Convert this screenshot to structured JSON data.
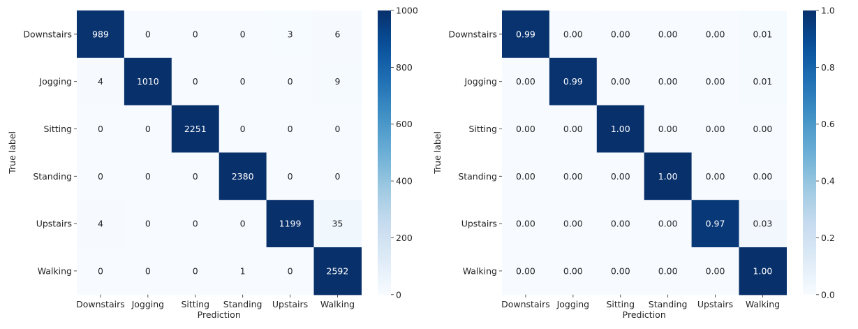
{
  "chart_data": [
    {
      "type": "heatmap",
      "xlabel": "Prediction",
      "ylabel": "True label",
      "x_categories": [
        "Downstairs",
        "Jogging",
        "Sitting",
        "Standing",
        "Upstairs",
        "Walking"
      ],
      "y_categories": [
        "Downstairs",
        "Jogging",
        "Sitting",
        "Standing",
        "Upstairs",
        "Walking"
      ],
      "values": [
        [
          989,
          0,
          0,
          0,
          3,
          6
        ],
        [
          4,
          1010,
          0,
          0,
          0,
          9
        ],
        [
          0,
          0,
          2251,
          0,
          0,
          0
        ],
        [
          0,
          0,
          0,
          2380,
          0,
          0
        ],
        [
          4,
          0,
          0,
          0,
          1199,
          35
        ],
        [
          0,
          0,
          0,
          1,
          0,
          2592
        ]
      ],
      "value_format": "integer",
      "color_range": [
        0,
        1000
      ],
      "colormap": "Blues",
      "colorbar_ticks": [
        0,
        200,
        400,
        600,
        800,
        1000
      ],
      "colorbar_tick_labels": [
        "0",
        "200",
        "400",
        "600",
        "800",
        "1000"
      ]
    },
    {
      "type": "heatmap",
      "xlabel": "Prediction",
      "ylabel": "True label",
      "x_categories": [
        "Downstairs",
        "Jogging",
        "Sitting",
        "Standing",
        "Upstairs",
        "Walking"
      ],
      "y_categories": [
        "Downstairs",
        "Jogging",
        "Sitting",
        "Standing",
        "Upstairs",
        "Walking"
      ],
      "values": [
        [
          0.99,
          0.0,
          0.0,
          0.0,
          0.0,
          0.01
        ],
        [
          0.0,
          0.99,
          0.0,
          0.0,
          0.0,
          0.01
        ],
        [
          0.0,
          0.0,
          1.0,
          0.0,
          0.0,
          0.0
        ],
        [
          0.0,
          0.0,
          0.0,
          1.0,
          0.0,
          0.0
        ],
        [
          0.0,
          0.0,
          0.0,
          0.0,
          0.97,
          0.03
        ],
        [
          0.0,
          0.0,
          0.0,
          0.0,
          0.0,
          1.0
        ]
      ],
      "value_format": "2dp",
      "color_range": [
        0,
        1
      ],
      "colormap": "Blues",
      "colorbar_ticks": [
        0,
        0.2,
        0.4,
        0.6,
        0.8,
        1.0
      ],
      "colorbar_tick_labels": [
        "0.0",
        "0.2",
        "0.4",
        "0.6",
        "0.8",
        "1.0"
      ]
    }
  ]
}
